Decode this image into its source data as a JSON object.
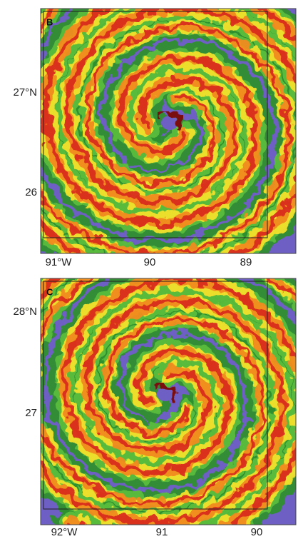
{
  "panels": [
    {
      "label": "B",
      "lat_labels": [
        "27°N",
        "26"
      ],
      "lon_labels": [
        "91°W",
        "90",
        "89"
      ]
    },
    {
      "label": "C",
      "lat_labels": [
        "28°N",
        "27"
      ],
      "lon_labels": [
        "92°W",
        "91",
        "90"
      ]
    }
  ]
}
